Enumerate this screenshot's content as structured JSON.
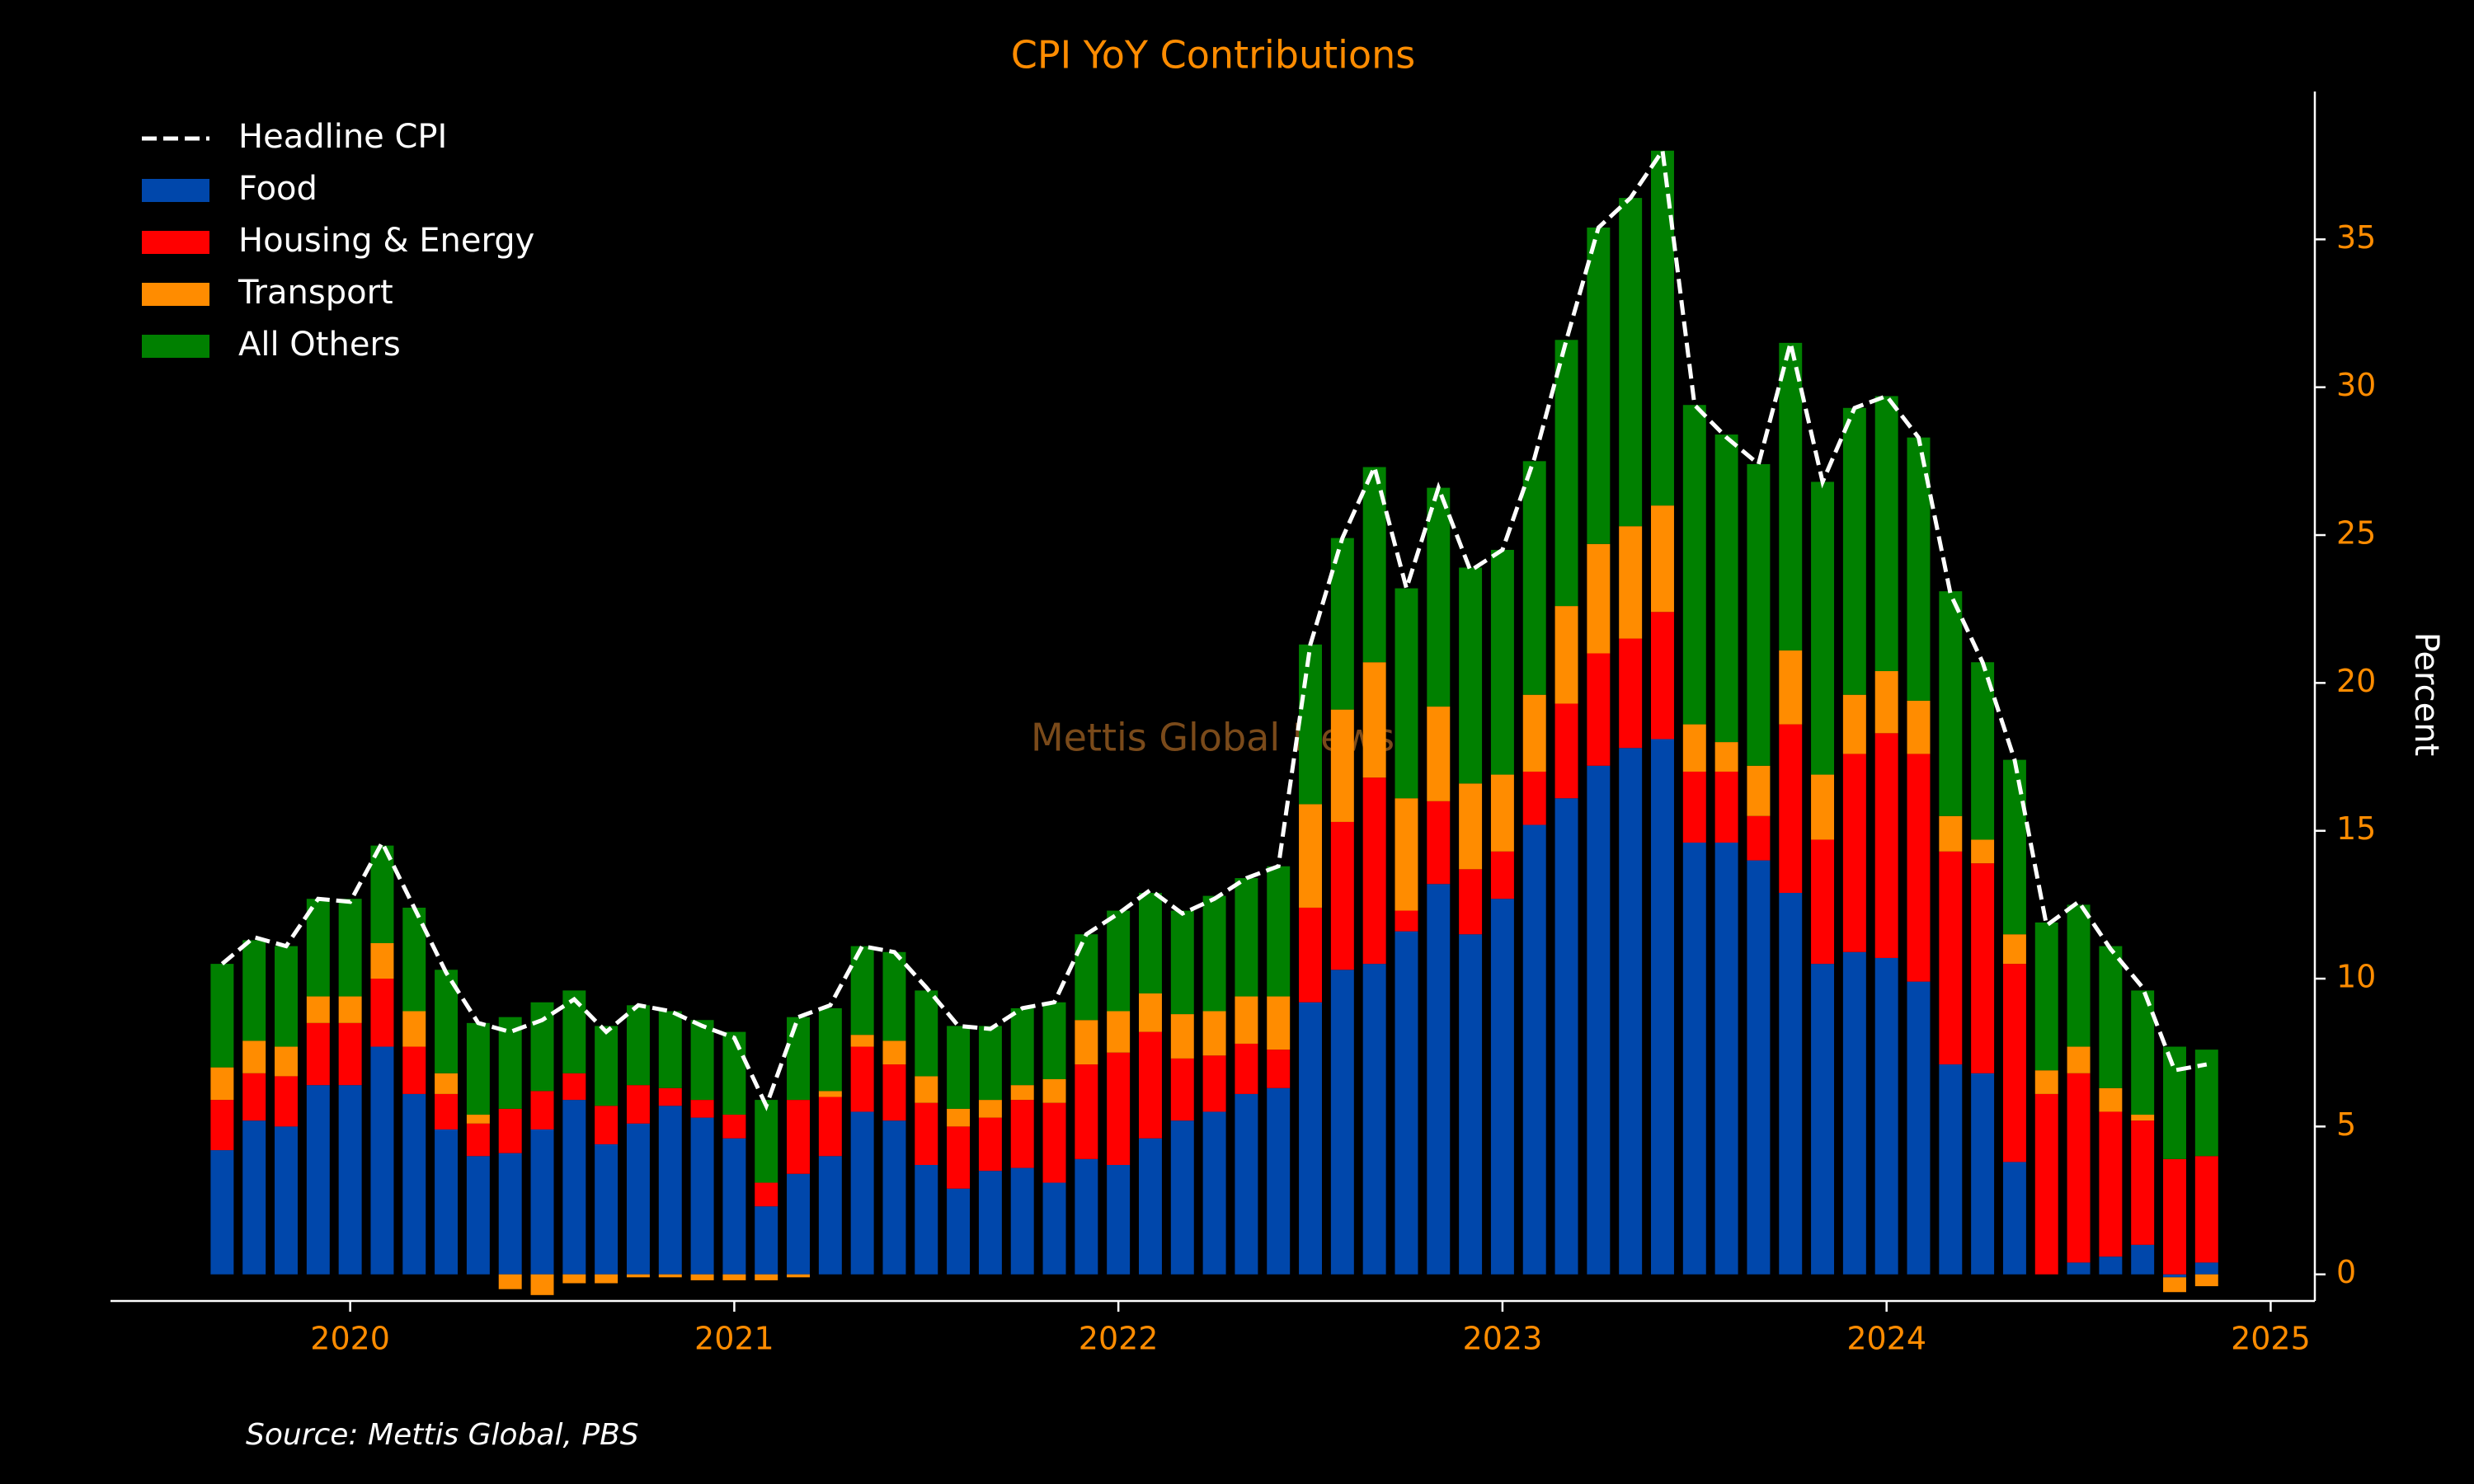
{
  "chart_data": {
    "type": "stacked_bar_line",
    "title": "CPI YoY Contributions",
    "ylabel": "Percent",
    "watermark": "Mettis Global News",
    "source": "Source: Mettis Global, PBS",
    "x": [
      "2019-09",
      "2019-10",
      "2019-11",
      "2019-12",
      "2020-01",
      "2020-02",
      "2020-03",
      "2020-04",
      "2020-05",
      "2020-06",
      "2020-07",
      "2020-08",
      "2020-09",
      "2020-10",
      "2020-11",
      "2020-12",
      "2021-01",
      "2021-02",
      "2021-03",
      "2021-04",
      "2021-05",
      "2021-06",
      "2021-07",
      "2021-08",
      "2021-09",
      "2021-10",
      "2021-11",
      "2021-12",
      "2022-01",
      "2022-02",
      "2022-03",
      "2022-04",
      "2022-05",
      "2022-06",
      "2022-07",
      "2022-08",
      "2022-09",
      "2022-10",
      "2022-11",
      "2022-12",
      "2023-01",
      "2023-02",
      "2023-03",
      "2023-04",
      "2023-05",
      "2023-06",
      "2023-07",
      "2023-08",
      "2023-09",
      "2023-10",
      "2023-11",
      "2023-12",
      "2024-01",
      "2024-02",
      "2024-03",
      "2024-04",
      "2024-05",
      "2024-06",
      "2024-07",
      "2024-08",
      "2024-09",
      "2024-10",
      "2024-11"
    ],
    "line": {
      "name": "Headline CPI",
      "color": "#ffffff",
      "values": [
        10.5,
        11.4,
        11.1,
        12.7,
        12.6,
        14.6,
        12.4,
        10.2,
        8.5,
        8.2,
        8.6,
        9.3,
        8.2,
        9.1,
        8.9,
        8.4,
        8.0,
        5.7,
        8.7,
        9.1,
        11.1,
        10.9,
        9.7,
        8.4,
        8.3,
        9.0,
        9.2,
        11.5,
        12.2,
        13.0,
        12.2,
        12.7,
        13.4,
        13.8,
        21.3,
        24.9,
        27.3,
        23.2,
        26.6,
        23.8,
        24.5,
        27.6,
        31.6,
        35.4,
        36.4,
        38.0,
        29.4,
        28.3,
        27.4,
        31.5,
        26.8,
        29.3,
        29.7,
        28.3,
        23.0,
        20.7,
        17.4,
        11.8,
        12.6,
        11.0,
        9.7,
        6.9,
        7.1
      ]
    },
    "series": [
      {
        "name": "Food",
        "color": "#0047ab",
        "values": [
          4.2,
          5.2,
          5.0,
          6.4,
          6.4,
          7.7,
          6.1,
          4.9,
          4.0,
          4.1,
          4.9,
          5.9,
          4.4,
          5.1,
          5.7,
          5.3,
          4.6,
          2.3,
          3.4,
          4.0,
          5.5,
          5.2,
          3.7,
          2.9,
          3.5,
          3.6,
          3.1,
          3.9,
          3.7,
          4.6,
          5.2,
          5.5,
          6.1,
          6.3,
          9.2,
          10.3,
          10.5,
          11.6,
          13.2,
          11.5,
          12.7,
          15.2,
          16.1,
          17.2,
          17.8,
          18.1,
          14.6,
          14.6,
          14.0,
          12.9,
          10.5,
          10.9,
          10.7,
          9.9,
          7.1,
          6.8,
          3.8,
          0.0,
          0.4,
          0.6,
          1.0,
          -0.1,
          0.4
        ]
      },
      {
        "name": "Housing & Energy",
        "color": "#ff0000",
        "values": [
          1.7,
          1.6,
          1.7,
          2.1,
          2.1,
          2.3,
          1.6,
          1.2,
          1.1,
          1.5,
          1.3,
          0.9,
          1.3,
          1.3,
          0.6,
          0.6,
          0.8,
          0.8,
          2.5,
          2.0,
          2.2,
          1.9,
          2.1,
          2.1,
          1.8,
          2.3,
          2.7,
          3.2,
          3.8,
          3.6,
          2.1,
          1.9,
          1.7,
          1.3,
          3.2,
          5.0,
          6.3,
          0.7,
          2.8,
          2.2,
          1.6,
          1.8,
          3.2,
          3.8,
          3.7,
          4.3,
          2.4,
          2.4,
          1.5,
          5.7,
          4.2,
          6.7,
          7.6,
          7.7,
          7.2,
          7.1,
          6.7,
          6.1,
          6.4,
          4.9,
          4.2,
          3.9,
          3.6
        ]
      },
      {
        "name": "Transport",
        "color": "#ff8c00",
        "values": [
          1.1,
          1.1,
          1.0,
          0.9,
          0.9,
          1.2,
          1.2,
          0.7,
          0.3,
          -0.5,
          -0.7,
          -0.3,
          -0.3,
          -0.1,
          -0.1,
          -0.2,
          -0.2,
          -0.2,
          -0.1,
          0.2,
          0.4,
          0.8,
          0.9,
          0.6,
          0.6,
          0.5,
          0.8,
          1.5,
          1.4,
          1.3,
          1.5,
          1.5,
          1.6,
          1.8,
          3.5,
          3.8,
          3.9,
          3.8,
          3.2,
          2.9,
          2.6,
          2.6,
          3.3,
          3.7,
          3.8,
          3.6,
          1.6,
          1.0,
          1.7,
          2.5,
          2.2,
          2.0,
          2.1,
          1.8,
          1.2,
          0.8,
          1.0,
          0.8,
          0.9,
          0.8,
          0.2,
          -0.5,
          -0.4
        ]
      },
      {
        "name": "All Others",
        "color": "#008000",
        "values": [
          3.5,
          3.4,
          3.4,
          3.3,
          3.3,
          3.3,
          3.5,
          3.5,
          3.1,
          3.1,
          3.0,
          2.8,
          2.7,
          2.7,
          2.6,
          2.7,
          2.8,
          2.8,
          2.8,
          2.8,
          3.0,
          3.0,
          2.9,
          2.8,
          2.5,
          2.6,
          2.6,
          2.9,
          3.4,
          3.4,
          3.5,
          3.9,
          4.0,
          4.4,
          5.4,
          5.8,
          6.6,
          7.1,
          7.4,
          7.3,
          7.6,
          7.9,
          9.0,
          10.7,
          11.1,
          12.0,
          10.8,
          10.4,
          10.2,
          10.4,
          9.9,
          9.7,
          9.3,
          8.9,
          7.6,
          6.0,
          5.9,
          5.0,
          4.8,
          4.8,
          4.2,
          3.8,
          3.6
        ]
      }
    ],
    "xlim": [
      2019.376,
      2025.115
    ],
    "xticks": [
      2020,
      2021,
      2022,
      2023,
      2024,
      2025
    ],
    "ylim": [
      -0.9,
      40.0
    ],
    "yticks": [
      0,
      5,
      10,
      15,
      20,
      25,
      30,
      35
    ],
    "yaxis_side": "right",
    "legend": "upper left",
    "grid": false,
    "axis_color": "#ffffff",
    "tick_label_color": "#ff8c00",
    "title_color": "#ff8c00",
    "watermark_color": "#7a4a1a"
  }
}
